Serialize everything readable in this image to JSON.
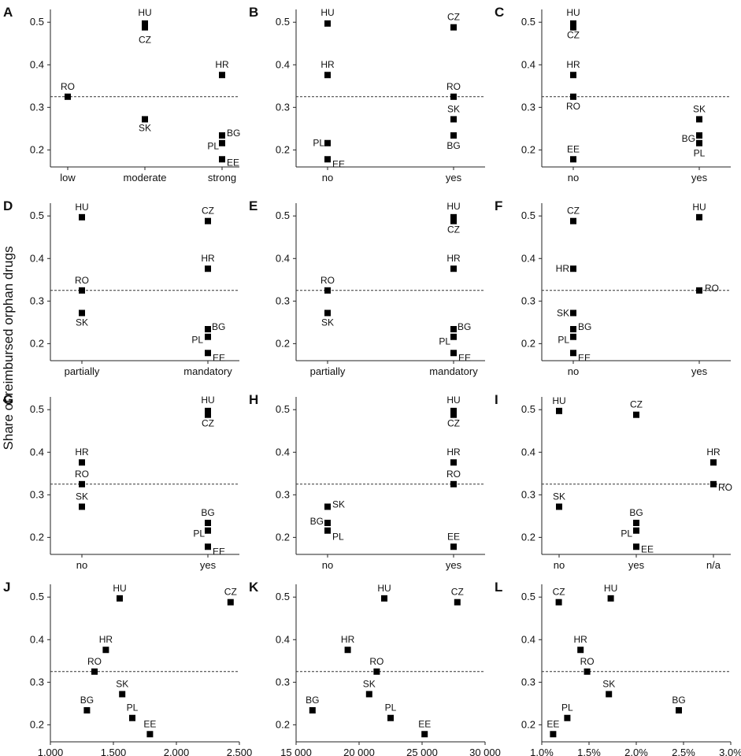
{
  "figure": {
    "ylabel": "Share of reimbursed orphan drugs",
    "reference_line": 0.325
  },
  "chart_data": [
    {
      "panel": "A",
      "type": "scatter",
      "x_type": "category",
      "categories": [
        "low",
        "moderate",
        "strong"
      ],
      "ylim": [
        0.16,
        0.53
      ],
      "yticks": [
        0.2,
        0.3,
        0.4,
        0.5
      ],
      "ytick_labels": [
        "0.2",
        "0.3",
        "0.4",
        "0.5"
      ],
      "points": [
        {
          "label": "RO",
          "x": "low",
          "y": 0.325
        },
        {
          "label": "HU",
          "x": "moderate",
          "y": 0.497
        },
        {
          "label": "CZ",
          "x": "moderate",
          "y": 0.488
        },
        {
          "label": "SK",
          "x": "moderate",
          "y": 0.272
        },
        {
          "label": "HR",
          "x": "strong",
          "y": 0.376
        },
        {
          "label": "BG",
          "x": "strong",
          "y": 0.234
        },
        {
          "label": "PL",
          "x": "strong",
          "y": 0.216
        },
        {
          "label": "EE",
          "x": "strong",
          "y": 0.178
        }
      ]
    },
    {
      "panel": "B",
      "type": "scatter",
      "x_type": "category",
      "categories": [
        "no",
        "yes"
      ],
      "ylim": [
        0.16,
        0.53
      ],
      "yticks": [
        0.2,
        0.3,
        0.4,
        0.5
      ],
      "ytick_labels": [
        "0.2",
        "0.3",
        "0.4",
        "0.5"
      ],
      "points": [
        {
          "label": "HU",
          "x": "no",
          "y": 0.497
        },
        {
          "label": "HR",
          "x": "no",
          "y": 0.376
        },
        {
          "label": "PL",
          "x": "no",
          "y": 0.216
        },
        {
          "label": "EE",
          "x": "no",
          "y": 0.178
        },
        {
          "label": "CZ",
          "x": "yes",
          "y": 0.488
        },
        {
          "label": "RO",
          "x": "yes",
          "y": 0.325
        },
        {
          "label": "SK",
          "x": "yes",
          "y": 0.272
        },
        {
          "label": "BG",
          "x": "yes",
          "y": 0.234
        }
      ]
    },
    {
      "panel": "C",
      "type": "scatter",
      "x_type": "category",
      "categories": [
        "no",
        "yes"
      ],
      "ylim": [
        0.16,
        0.53
      ],
      "yticks": [
        0.2,
        0.3,
        0.4,
        0.5
      ],
      "ytick_labels": [
        "0.2",
        "0.3",
        "0.4",
        "0.5"
      ],
      "points": [
        {
          "label": "HU",
          "x": "no",
          "y": 0.497
        },
        {
          "label": "CZ",
          "x": "no",
          "y": 0.488
        },
        {
          "label": "HR",
          "x": "no",
          "y": 0.376
        },
        {
          "label": "RO",
          "x": "no",
          "y": 0.325
        },
        {
          "label": "EE",
          "x": "no",
          "y": 0.178
        },
        {
          "label": "SK",
          "x": "yes",
          "y": 0.272
        },
        {
          "label": "BG",
          "x": "yes",
          "y": 0.234
        },
        {
          "label": "PL",
          "x": "yes",
          "y": 0.216
        }
      ]
    },
    {
      "panel": "D",
      "type": "scatter",
      "x_type": "category",
      "categories": [
        "partially",
        "mandatory"
      ],
      "ylim": [
        0.16,
        0.53
      ],
      "yticks": [
        0.2,
        0.3,
        0.4,
        0.5
      ],
      "ytick_labels": [
        "0.2",
        "0.3",
        "0.4",
        "0.5"
      ],
      "points": [
        {
          "label": "HU",
          "x": "partially",
          "y": 0.497
        },
        {
          "label": "RO",
          "x": "partially",
          "y": 0.325
        },
        {
          "label": "SK",
          "x": "partially",
          "y": 0.272
        },
        {
          "label": "CZ",
          "x": "mandatory",
          "y": 0.488
        },
        {
          "label": "HR",
          "x": "mandatory",
          "y": 0.376
        },
        {
          "label": "BG",
          "x": "mandatory",
          "y": 0.234
        },
        {
          "label": "PL",
          "x": "mandatory",
          "y": 0.216
        },
        {
          "label": "EE",
          "x": "mandatory",
          "y": 0.178
        }
      ]
    },
    {
      "panel": "E",
      "type": "scatter",
      "x_type": "category",
      "categories": [
        "partially",
        "mandatory"
      ],
      "ylim": [
        0.16,
        0.53
      ],
      "yticks": [
        0.2,
        0.3,
        0.4,
        0.5
      ],
      "ytick_labels": [
        "0.2",
        "0.3",
        "0.4",
        "0.5"
      ],
      "points": [
        {
          "label": "RO",
          "x": "partially",
          "y": 0.325
        },
        {
          "label": "SK",
          "x": "partially",
          "y": 0.272
        },
        {
          "label": "HU",
          "x": "mandatory",
          "y": 0.497
        },
        {
          "label": "CZ",
          "x": "mandatory",
          "y": 0.488
        },
        {
          "label": "HR",
          "x": "mandatory",
          "y": 0.376
        },
        {
          "label": "BG",
          "x": "mandatory",
          "y": 0.234
        },
        {
          "label": "PL",
          "x": "mandatory",
          "y": 0.216
        },
        {
          "label": "EE",
          "x": "mandatory",
          "y": 0.178
        }
      ]
    },
    {
      "panel": "F",
      "type": "scatter",
      "x_type": "category",
      "categories": [
        "no",
        "yes"
      ],
      "ylim": [
        0.16,
        0.53
      ],
      "yticks": [
        0.2,
        0.3,
        0.4,
        0.5
      ],
      "ytick_labels": [
        "0.2",
        "0.3",
        "0.4",
        "0.5"
      ],
      "points": [
        {
          "label": "CZ",
          "x": "no",
          "y": 0.488
        },
        {
          "label": "HR",
          "x": "no",
          "y": 0.376
        },
        {
          "label": "SK",
          "x": "no",
          "y": 0.272
        },
        {
          "label": "BG",
          "x": "no",
          "y": 0.234
        },
        {
          "label": "PL",
          "x": "no",
          "y": 0.216
        },
        {
          "label": "EE",
          "x": "no",
          "y": 0.178
        },
        {
          "label": "HU",
          "x": "yes",
          "y": 0.497
        },
        {
          "label": "RO",
          "x": "yes",
          "y": 0.325
        }
      ]
    },
    {
      "panel": "G",
      "type": "scatter",
      "x_type": "category",
      "categories": [
        "no",
        "yes"
      ],
      "ylim": [
        0.16,
        0.53
      ],
      "yticks": [
        0.2,
        0.3,
        0.4,
        0.5
      ],
      "ytick_labels": [
        "0.2",
        "0.3",
        "0.4",
        "0.5"
      ],
      "points": [
        {
          "label": "HR",
          "x": "no",
          "y": 0.376
        },
        {
          "label": "RO",
          "x": "no",
          "y": 0.325
        },
        {
          "label": "SK",
          "x": "no",
          "y": 0.272
        },
        {
          "label": "HU",
          "x": "yes",
          "y": 0.497
        },
        {
          "label": "CZ",
          "x": "yes",
          "y": 0.488
        },
        {
          "label": "BG",
          "x": "yes",
          "y": 0.234
        },
        {
          "label": "PL",
          "x": "yes",
          "y": 0.216
        },
        {
          "label": "EE",
          "x": "yes",
          "y": 0.178
        }
      ]
    },
    {
      "panel": "H",
      "type": "scatter",
      "x_type": "category",
      "categories": [
        "no",
        "yes"
      ],
      "ylim": [
        0.16,
        0.53
      ],
      "yticks": [
        0.2,
        0.3,
        0.4,
        0.5
      ],
      "ytick_labels": [
        "0.2",
        "0.3",
        "0.4",
        "0.5"
      ],
      "points": [
        {
          "label": "SK",
          "x": "no",
          "y": 0.272
        },
        {
          "label": "BG",
          "x": "no",
          "y": 0.234
        },
        {
          "label": "PL",
          "x": "no",
          "y": 0.216
        },
        {
          "label": "HU",
          "x": "yes",
          "y": 0.497
        },
        {
          "label": "CZ",
          "x": "yes",
          "y": 0.488
        },
        {
          "label": "HR",
          "x": "yes",
          "y": 0.376
        },
        {
          "label": "RO",
          "x": "yes",
          "y": 0.325
        },
        {
          "label": "EE",
          "x": "yes",
          "y": 0.178
        }
      ]
    },
    {
      "panel": "I",
      "type": "scatter",
      "x_type": "category",
      "categories": [
        "no",
        "yes",
        "n/a"
      ],
      "ylim": [
        0.16,
        0.53
      ],
      "yticks": [
        0.2,
        0.3,
        0.4,
        0.5
      ],
      "ytick_labels": [
        "0.2",
        "0.3",
        "0.4",
        "0.5"
      ],
      "points": [
        {
          "label": "HU",
          "x": "no",
          "y": 0.497
        },
        {
          "label": "SK",
          "x": "no",
          "y": 0.272
        },
        {
          "label": "CZ",
          "x": "yes",
          "y": 0.488
        },
        {
          "label": "BG",
          "x": "yes",
          "y": 0.234
        },
        {
          "label": "PL",
          "x": "yes",
          "y": 0.216
        },
        {
          "label": "EE",
          "x": "yes",
          "y": 0.178
        },
        {
          "label": "HR",
          "x": "n/a",
          "y": 0.376
        },
        {
          "label": "RO",
          "x": "n/a",
          "y": 0.325
        }
      ]
    },
    {
      "panel": "J",
      "type": "scatter",
      "x_type": "numeric",
      "xlim": [
        1000,
        2500
      ],
      "xticks": [
        1000,
        1500,
        2000,
        2500
      ],
      "xtick_labels": [
        "1,000",
        "1,500",
        "2,000",
        "2,500"
      ],
      "ylim": [
        0.16,
        0.53
      ],
      "yticks": [
        0.2,
        0.3,
        0.4,
        0.5
      ],
      "ytick_labels": [
        "0.2",
        "0.3",
        "0.4",
        "0.5"
      ],
      "points": [
        {
          "label": "HU",
          "x": 1550,
          "y": 0.497
        },
        {
          "label": "CZ",
          "x": 2430,
          "y": 0.488
        },
        {
          "label": "HR",
          "x": 1440,
          "y": 0.376
        },
        {
          "label": "RO",
          "x": 1350,
          "y": 0.325
        },
        {
          "label": "SK",
          "x": 1570,
          "y": 0.272
        },
        {
          "label": "BG",
          "x": 1290,
          "y": 0.234
        },
        {
          "label": "PL",
          "x": 1650,
          "y": 0.216
        },
        {
          "label": "EE",
          "x": 1790,
          "y": 0.178
        }
      ]
    },
    {
      "panel": "K",
      "type": "scatter",
      "x_type": "numeric",
      "xlim": [
        15000,
        30000
      ],
      "xticks": [
        15000,
        20000,
        25000,
        30000
      ],
      "xtick_labels": [
        "15 000",
        "20 000",
        "25 000",
        "30 000"
      ],
      "ylim": [
        0.16,
        0.53
      ],
      "yticks": [
        0.2,
        0.3,
        0.4,
        0.5
      ],
      "ytick_labels": [
        "0.2",
        "0.3",
        "0.4",
        "0.5"
      ],
      "points": [
        {
          "label": "HU",
          "x": 22000,
          "y": 0.497
        },
        {
          "label": "CZ",
          "x": 27800,
          "y": 0.488
        },
        {
          "label": "HR",
          "x": 19100,
          "y": 0.376
        },
        {
          "label": "RO",
          "x": 21400,
          "y": 0.325
        },
        {
          "label": "SK",
          "x": 20800,
          "y": 0.272
        },
        {
          "label": "BG",
          "x": 16300,
          "y": 0.234
        },
        {
          "label": "PL",
          "x": 22500,
          "y": 0.216
        },
        {
          "label": "EE",
          "x": 25200,
          "y": 0.178
        }
      ]
    },
    {
      "panel": "L",
      "type": "scatter",
      "x_type": "numeric",
      "xlim": [
        1.0,
        3.0
      ],
      "xticks": [
        1.0,
        1.5,
        2.0,
        2.5,
        3.0
      ],
      "xtick_labels": [
        "1.0%",
        "1.5%",
        "2.0%",
        "2.5%",
        "3.0%"
      ],
      "ylim": [
        0.16,
        0.53
      ],
      "yticks": [
        0.2,
        0.3,
        0.4,
        0.5
      ],
      "ytick_labels": [
        "0.2",
        "0.3",
        "0.4",
        "0.5"
      ],
      "points": [
        {
          "label": "CZ",
          "x": 1.18,
          "y": 0.488
        },
        {
          "label": "HU",
          "x": 1.73,
          "y": 0.497
        },
        {
          "label": "HR",
          "x": 1.41,
          "y": 0.376
        },
        {
          "label": "RO",
          "x": 1.48,
          "y": 0.325
        },
        {
          "label": "SK",
          "x": 1.71,
          "y": 0.272
        },
        {
          "label": "BG",
          "x": 2.45,
          "y": 0.234
        },
        {
          "label": "PL",
          "x": 1.27,
          "y": 0.216
        },
        {
          "label": "EE",
          "x": 1.12,
          "y": 0.178
        }
      ]
    }
  ]
}
